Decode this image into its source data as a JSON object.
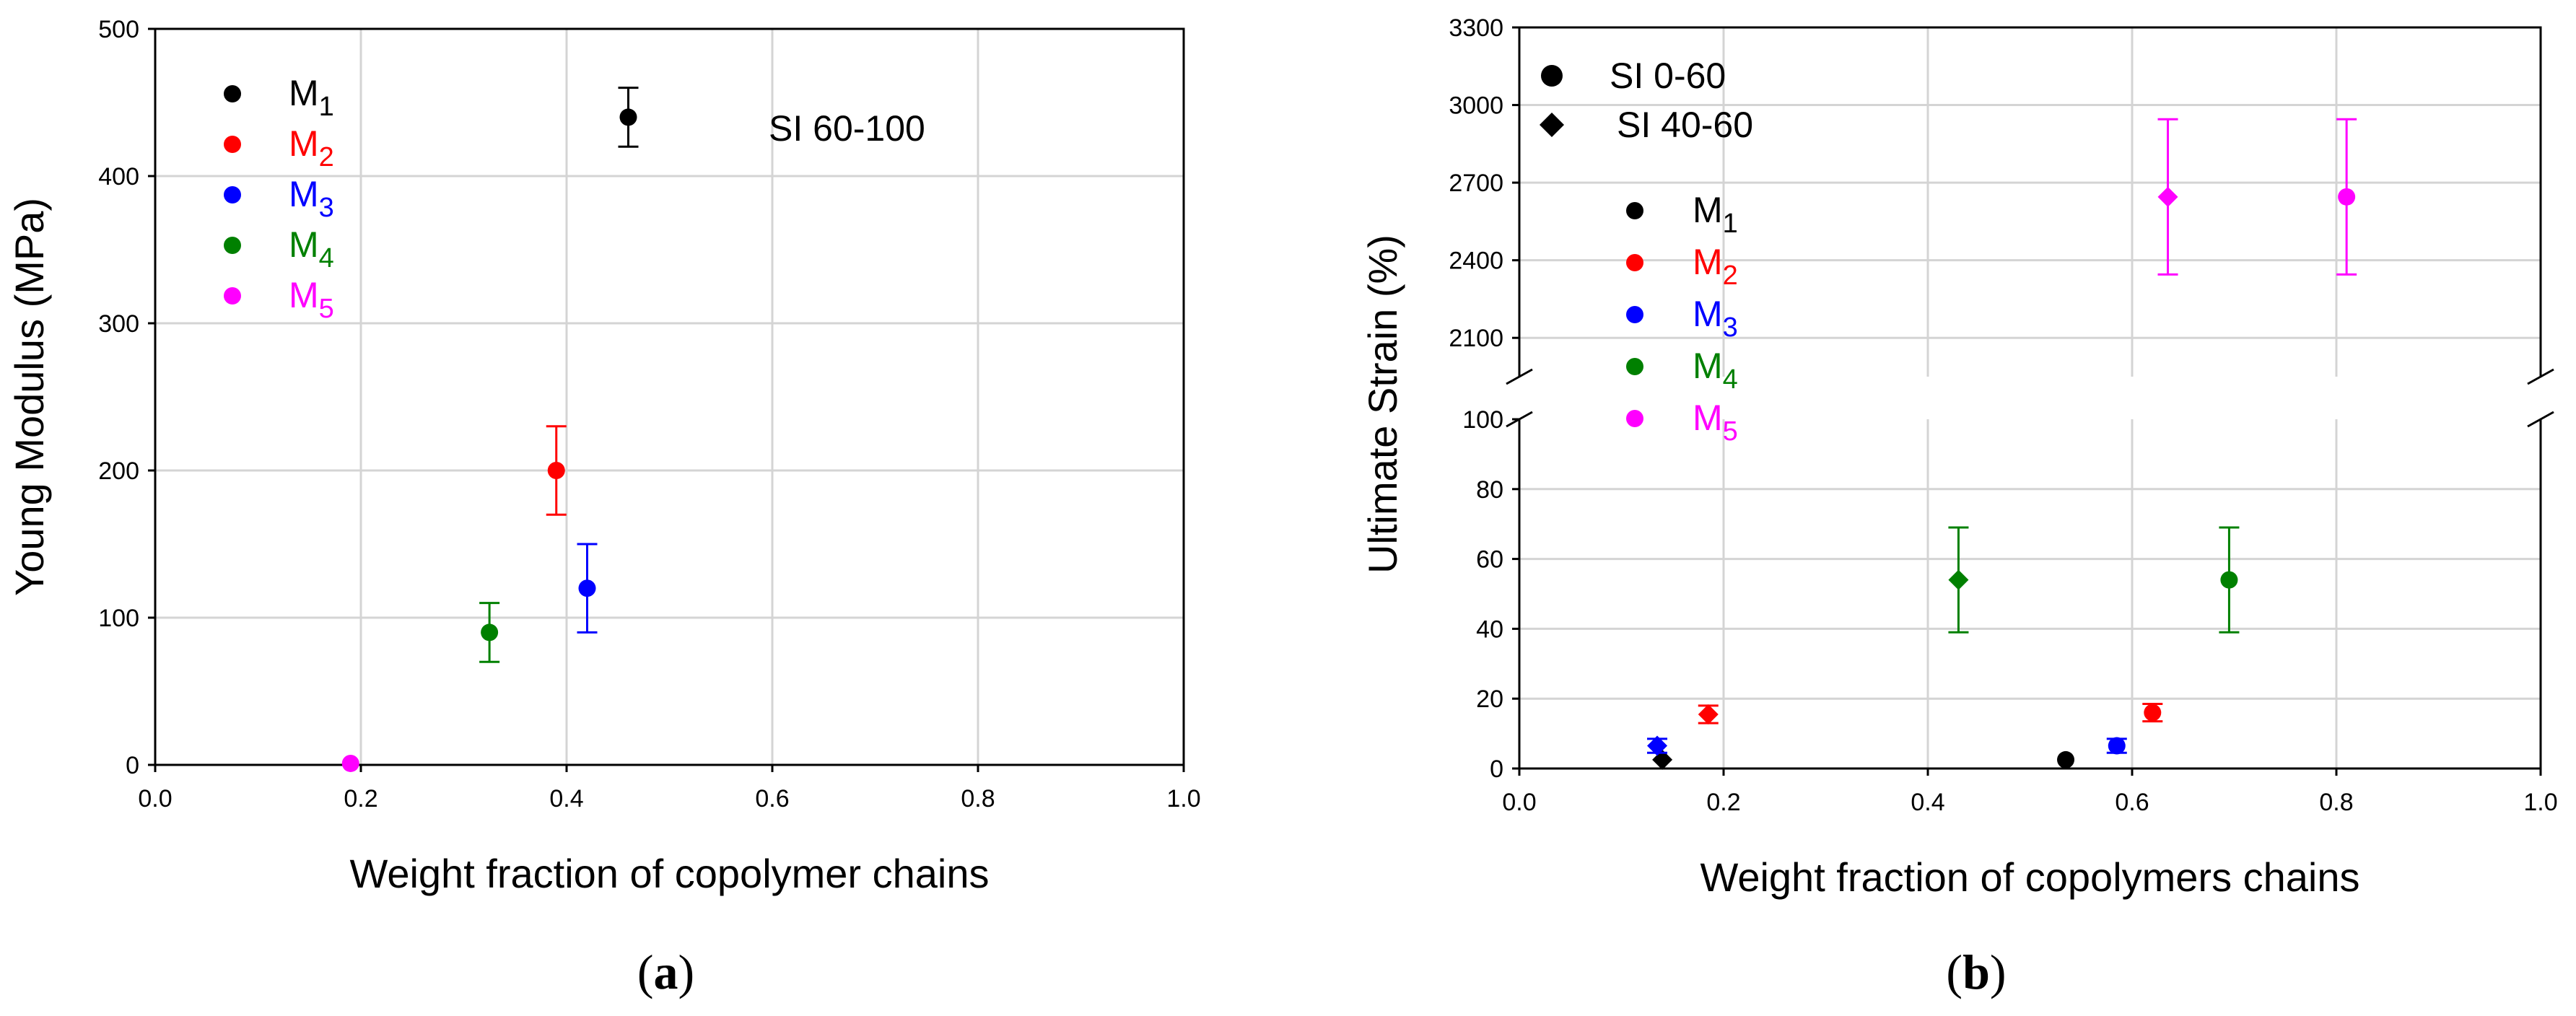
{
  "chart_data": [
    {
      "panel": "a",
      "panel_label": "a",
      "type": "scatter",
      "xlabel": "Weight fraction of copolymer chains",
      "ylabel": "Young Modulus (MPa)",
      "xlim": [
        0,
        1
      ],
      "ylim": [
        0,
        500
      ],
      "xticks": [
        "0.0",
        "0.2",
        "0.4",
        "0.6",
        "0.8",
        "1.0"
      ],
      "yticks": [
        "0",
        "100",
        "200",
        "300",
        "400",
        "500"
      ],
      "annotation": "SI 60-100",
      "legend": [
        {
          "label": "M",
          "sub": "1",
          "color": "#000000"
        },
        {
          "label": "M",
          "sub": "2",
          "color": "#ff0000"
        },
        {
          "label": "M",
          "sub": "3",
          "color": "#0000ff"
        },
        {
          "label": "M",
          "sub": "4",
          "color": "#008000"
        },
        {
          "label": "M",
          "sub": "5",
          "color": "#ff00ff"
        }
      ],
      "series": [
        {
          "name": "M1",
          "color": "#000000",
          "points": [
            {
              "x": 0.46,
              "y": 440,
              "err": 20
            }
          ]
        },
        {
          "name": "M2",
          "color": "#ff0000",
          "points": [
            {
              "x": 0.39,
              "y": 200,
              "err": 30
            }
          ]
        },
        {
          "name": "M3",
          "color": "#0000ff",
          "points": [
            {
              "x": 0.42,
              "y": 120,
              "err": 30
            }
          ]
        },
        {
          "name": "M4",
          "color": "#008000",
          "points": [
            {
              "x": 0.325,
              "y": 90,
              "err": 20
            }
          ]
        },
        {
          "name": "M5",
          "color": "#ff00ff",
          "points": [
            {
              "x": 0.19,
              "y": 1,
              "err": 0
            }
          ]
        }
      ]
    },
    {
      "panel": "b",
      "panel_label": "b",
      "type": "scatter",
      "xlabel": "Weight fraction of copolymers chains",
      "ylabel": "Ultimate Strain (%)",
      "xlim": [
        0,
        1
      ],
      "ylim_lower": [
        0,
        100
      ],
      "ylim_upper": [
        1950,
        3300
      ],
      "broken_axis": true,
      "xticks": [
        "0.0",
        "0.2",
        "0.4",
        "0.6",
        "0.8",
        "1.0"
      ],
      "yticks_lower": [
        "0",
        "20",
        "40",
        "60",
        "80",
        "100"
      ],
      "yticks_upper": [
        "2100",
        "2400",
        "2700",
        "3000",
        "3300"
      ],
      "marker_legend": [
        {
          "marker": "circle",
          "label": "SI 0-60"
        },
        {
          "marker": "diamond",
          "label": "SI 40-60"
        }
      ],
      "legend": [
        {
          "label": "M",
          "sub": "1",
          "color": "#000000"
        },
        {
          "label": "M",
          "sub": "2",
          "color": "#ff0000"
        },
        {
          "label": "M",
          "sub": "3",
          "color": "#0000ff"
        },
        {
          "label": "M",
          "sub": "4",
          "color": "#008000"
        },
        {
          "label": "M",
          "sub": "5",
          "color": "#ff00ff"
        }
      ],
      "series": [
        {
          "name": "M1",
          "color": "#000000",
          "points": [
            {
              "x": 0.14,
              "y": 2.5,
              "err": 0,
              "marker": "diamond"
            },
            {
              "x": 0.535,
              "y": 2.5,
              "err": 0,
              "marker": "circle"
            }
          ]
        },
        {
          "name": "M2",
          "color": "#ff0000",
          "points": [
            {
              "x": 0.185,
              "y": 15.5,
              "err": 2.5,
              "marker": "diamond"
            },
            {
              "x": 0.62,
              "y": 16,
              "err": 2.5,
              "marker": "circle"
            }
          ]
        },
        {
          "name": "M3",
          "color": "#0000ff",
          "points": [
            {
              "x": 0.135,
              "y": 6.5,
              "err": 2,
              "marker": "diamond"
            },
            {
              "x": 0.585,
              "y": 6.5,
              "err": 2,
              "marker": "circle"
            }
          ]
        },
        {
          "name": "M4",
          "color": "#008000",
          "points": [
            {
              "x": 0.43,
              "y": 54,
              "err": 15,
              "marker": "diamond"
            },
            {
              "x": 0.695,
              "y": 54,
              "err": 15,
              "marker": "circle"
            }
          ]
        },
        {
          "name": "M5",
          "color": "#ff00ff",
          "points": [
            {
              "x": 0.635,
              "y": 2645,
              "err": 300,
              "marker": "diamond"
            },
            {
              "x": 0.81,
              "y": 2645,
              "err": 300,
              "marker": "circle"
            }
          ]
        }
      ]
    }
  ]
}
